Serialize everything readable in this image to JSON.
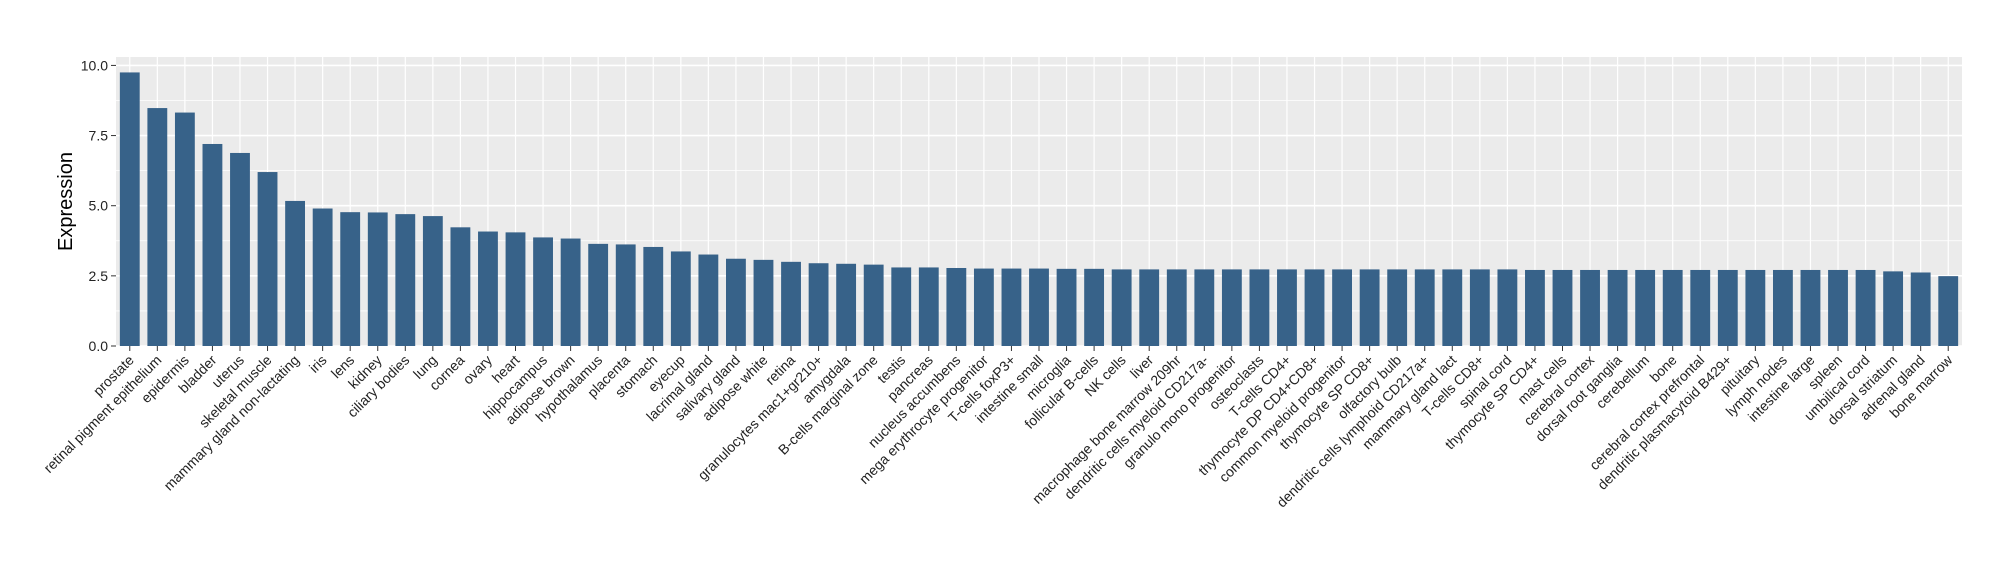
{
  "chart_data": {
    "type": "bar",
    "title": "",
    "xlabel": "",
    "ylabel": "Expression",
    "ylim": [
      0,
      10.3
    ],
    "yticks": [
      "0.0",
      "2.5",
      "5.0",
      "7.5",
      "10.0"
    ],
    "grid": true,
    "legend": "none",
    "colors": {
      "bar": "#376289",
      "panel": "#ebebeb",
      "grid": "#ffffff"
    },
    "categories": [
      "prostate",
      "retinal pigment epithelium",
      "epidermis",
      "bladder",
      "uterus",
      "skeletal muscle",
      "mammary gland non-lactating",
      "iris",
      "lens",
      "kidney",
      "ciliary bodies",
      "lung",
      "cornea",
      "ovary",
      "heart",
      "hippocampus",
      "adipose brown",
      "hypothalamus",
      "placenta",
      "stomach",
      "eyecup",
      "lacrimal gland",
      "salivary gland",
      "adipose white",
      "retina",
      "granulocytes mac1+gr210+",
      "amygdala",
      "B-cells marginal zone",
      "testis",
      "pancreas",
      "nucleus accumbens",
      "mega erythrocyte progenitor",
      "T-cells foxP3+",
      "intestine small",
      "microglia",
      "follicular B-cells",
      "NK cells",
      "liver",
      "macrophage bone marrow 209hr",
      "dendritic cells myeloid CD217a-",
      "granulo mono progenitor",
      "osteoclasts",
      "T-cells CD4+",
      "thymocyte DP CD4+CD8+",
      "common myeloid progenitor",
      "thymocyte SP CD8+",
      "olfactory bulb",
      "dendritic cells lymphoid CD217a+",
      "mammary gland lact",
      "T-cells CD8+",
      "spinal cord",
      "thymocyte SP CD4+",
      "mast cells",
      "cerebral cortex",
      "dorsal root ganglia",
      "cerebellum",
      "bone",
      "cerebral cortex prefrontal",
      "dendritic plasmacytoid B429+",
      "pituitary",
      "lymph nodes",
      "intestine large",
      "spleen",
      "umbilical cord",
      "dorsal striatum",
      "adrenal gland",
      "bone marrow"
    ],
    "values": [
      9.75,
      8.48,
      8.32,
      7.2,
      6.88,
      6.2,
      5.17,
      4.9,
      4.77,
      4.76,
      4.7,
      4.63,
      4.23,
      4.08,
      4.05,
      3.87,
      3.83,
      3.64,
      3.62,
      3.53,
      3.37,
      3.26,
      3.11,
      3.07,
      3.0,
      2.95,
      2.93,
      2.9,
      2.8,
      2.8,
      2.78,
      2.76,
      2.76,
      2.76,
      2.75,
      2.75,
      2.73,
      2.73,
      2.73,
      2.73,
      2.73,
      2.73,
      2.73,
      2.73,
      2.73,
      2.73,
      2.73,
      2.73,
      2.73,
      2.73,
      2.73,
      2.71,
      2.71,
      2.71,
      2.71,
      2.71,
      2.71,
      2.71,
      2.71,
      2.71,
      2.71,
      2.71,
      2.71,
      2.71,
      2.66,
      2.62,
      2.49
    ]
  }
}
